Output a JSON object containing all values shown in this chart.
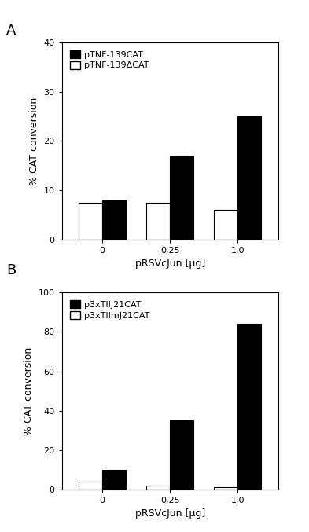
{
  "panel_A": {
    "label": "A",
    "categories": [
      "0",
      "0,25",
      "1,0"
    ],
    "series1_label": "pTNF-139CAT",
    "series2_label": "pTNF-139ΔCAT",
    "series1_values": [
      8.0,
      17.0,
      25.0
    ],
    "series2_values": [
      7.5,
      7.5,
      6.0
    ],
    "ylabel": "% CAT conversion",
    "xlabel": "pRSVcJun [µg]",
    "ylim": [
      0,
      40
    ],
    "yticks": [
      0,
      10,
      20,
      30,
      40
    ]
  },
  "panel_B": {
    "label": "B",
    "categories": [
      "0",
      "0,25",
      "1,0"
    ],
    "series1_label": "p3xTIIJ21CAT",
    "series2_label": "p3xTIImJ21CAT",
    "series1_values": [
      10.0,
      35.0,
      84.0
    ],
    "series2_values": [
      4.0,
      2.0,
      1.0
    ],
    "ylabel": "% CAT conversion",
    "xlabel": "pRSVcJun [µg]",
    "ylim": [
      0,
      100
    ],
    "yticks": [
      0,
      20,
      40,
      60,
      80,
      100
    ]
  },
  "bar_width": 0.35,
  "filled_color": "#000000",
  "open_color": "#ffffff",
  "edge_color": "#000000",
  "bg_color": "#ffffff",
  "fig_bg_color": "#ffffff",
  "label_fontsize": 9,
  "tick_fontsize": 8,
  "legend_fontsize": 8,
  "panel_label_fontsize": 13
}
